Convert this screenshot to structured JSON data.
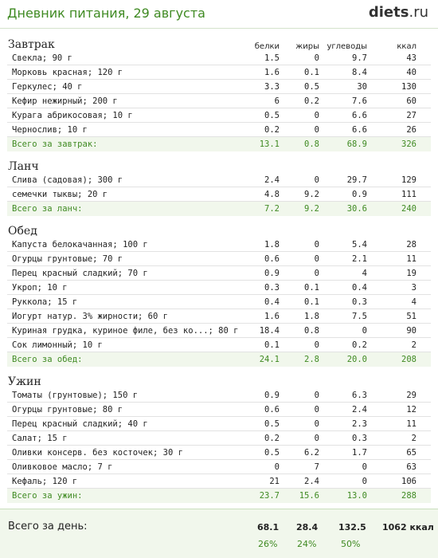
{
  "title": "Дневник питания, 29 августа",
  "logo": {
    "part1": "diets",
    "part2": ".ru"
  },
  "columns": {
    "protein": "белки",
    "fat": "жиры",
    "carbs": "углеводы",
    "kcal": "ккал"
  },
  "meals": [
    {
      "name": "Завтрак",
      "items": [
        {
          "name": "Свекла; 90 г",
          "p": "1.5",
          "f": "0",
          "c": "9.7",
          "k": "43"
        },
        {
          "name": "Морковь красная; 120 г",
          "p": "1.6",
          "f": "0.1",
          "c": "8.4",
          "k": "40"
        },
        {
          "name": "Геркулес; 40 г",
          "p": "3.3",
          "f": "0.5",
          "c": "30",
          "k": "130"
        },
        {
          "name": "Кефир нежирный; 200 г",
          "p": "6",
          "f": "0.2",
          "c": "7.6",
          "k": "60"
        },
        {
          "name": "Курага абрикосовая; 10 г",
          "p": "0.5",
          "f": "0",
          "c": "6.6",
          "k": "27"
        },
        {
          "name": "Чернослив; 10 г",
          "p": "0.2",
          "f": "0",
          "c": "6.6",
          "k": "26"
        }
      ],
      "total": {
        "label": "Всего за завтрак:",
        "p": "13.1",
        "f": "0.8",
        "c": "68.9",
        "k": "326"
      }
    },
    {
      "name": "Ланч",
      "items": [
        {
          "name": "Слива (садовая); 300 г",
          "p": "2.4",
          "f": "0",
          "c": "29.7",
          "k": "129"
        },
        {
          "name": "семечки тыквы; 20 г",
          "p": "4.8",
          "f": "9.2",
          "c": "0.9",
          "k": "111"
        }
      ],
      "total": {
        "label": "Всего за ланч:",
        "p": "7.2",
        "f": "9.2",
        "c": "30.6",
        "k": "240"
      }
    },
    {
      "name": "Обед",
      "items": [
        {
          "name": "Капуста белокачанная; 100 г",
          "p": "1.8",
          "f": "0",
          "c": "5.4",
          "k": "28"
        },
        {
          "name": "Огурцы грунтовые; 70 г",
          "p": "0.6",
          "f": "0",
          "c": "2.1",
          "k": "11"
        },
        {
          "name": "Перец красный сладкий; 70 г",
          "p": "0.9",
          "f": "0",
          "c": "4",
          "k": "19"
        },
        {
          "name": "Укроп; 10 г",
          "p": "0.3",
          "f": "0.1",
          "c": "0.4",
          "k": "3"
        },
        {
          "name": "Руккола; 15 г",
          "p": "0.4",
          "f": "0.1",
          "c": "0.3",
          "k": "4"
        },
        {
          "name": "Йогурт натур. 3% жирности; 60 г",
          "p": "1.6",
          "f": "1.8",
          "c": "7.5",
          "k": "51"
        },
        {
          "name": "Куриная грудка, куриное филе, без ко...; 80 г",
          "p": "18.4",
          "f": "0.8",
          "c": "0",
          "k": "90"
        },
        {
          "name": "Сок лимонный; 10 г",
          "p": "0.1",
          "f": "0",
          "c": "0.2",
          "k": "2"
        }
      ],
      "total": {
        "label": "Всего за обед:",
        "p": "24.1",
        "f": "2.8",
        "c": "20.0",
        "k": "208"
      }
    },
    {
      "name": "Ужин",
      "items": [
        {
          "name": "Томаты (грунтовые); 150 г",
          "p": "0.9",
          "f": "0",
          "c": "6.3",
          "k": "29"
        },
        {
          "name": "Огурцы грунтовые; 80 г",
          "p": "0.6",
          "f": "0",
          "c": "2.4",
          "k": "12"
        },
        {
          "name": "Перец красный сладкий; 40 г",
          "p": "0.5",
          "f": "0",
          "c": "2.3",
          "k": "11"
        },
        {
          "name": "Салат; 15 г",
          "p": "0.2",
          "f": "0",
          "c": "0.3",
          "k": "2"
        },
        {
          "name": "Оливки консерв. без косточек; 30 г",
          "p": "0.5",
          "f": "6.2",
          "c": "1.7",
          "k": "65"
        },
        {
          "name": "Оливковое масло; 7 г",
          "p": "0",
          "f": "7",
          "c": "0",
          "k": "63"
        },
        {
          "name": "Кефаль; 120 г",
          "p": "21",
          "f": "2.4",
          "c": "0",
          "k": "106"
        }
      ],
      "total": {
        "label": "Всего за ужин:",
        "p": "23.7",
        "f": "15.6",
        "c": "13.0",
        "k": "288"
      }
    }
  ],
  "day_total": {
    "label": "Всего за день:",
    "p": "68.1",
    "f": "28.4",
    "c": "132.5",
    "k": "1062 ккал",
    "p_pct": "26%",
    "f_pct": "24%",
    "c_pct": "50%"
  },
  "colors": {
    "accent": "#3f8a22",
    "total_bg": "#f1f7ec"
  }
}
